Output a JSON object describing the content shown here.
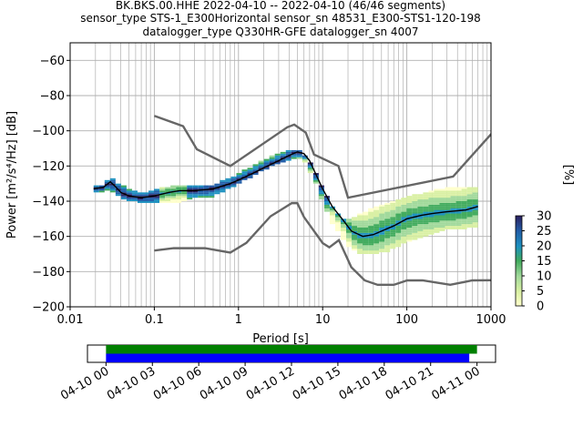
{
  "title_lines": [
    "BK.BKS.00.HHE   2022-04-10 -- 2022-04-10  (46/46 segments)",
    "sensor_type STS-1_E300Horizontal sensor_sn 48531_E300-STS1-120-198",
    "datalogger_type Q330HR-GFE datalogger_sn 4007"
  ],
  "colors": {
    "model_curves": "#666666",
    "mode_line": "#000000",
    "grid": "#b0b0b0",
    "coverage_top": "#008000",
    "coverage_bottom": "#0000ff",
    "cmap": [
      "#ffffcc",
      "#d9f0a3",
      "#a1d99b",
      "#41ab5d",
      "#1d91c0",
      "#225ea8",
      "#2c1f5e"
    ]
  },
  "chart_data": [
    {
      "type": "heatmap",
      "subtype": "probabilistic power spectral density",
      "xlabel": "Period [s]",
      "ylabel": "Power [m²/s⁴/Hz] [dB]",
      "xscale": "log",
      "xlim": [
        0.01,
        1000
      ],
      "ylim": [
        -200,
        -50
      ],
      "xticks": [
        0.01,
        0.1,
        1,
        10,
        100,
        1000
      ],
      "xtick_labels": [
        "0.01",
        "0.1",
        "1",
        "10",
        "100",
        "1000"
      ],
      "yticks": [
        -200,
        -180,
        -160,
        -140,
        -120,
        -100,
        -80,
        -60
      ],
      "ytick_labels": [
        "−200",
        "−180",
        "−160",
        "−140",
        "−120",
        "−100",
        "−80",
        "−60"
      ],
      "grid": true,
      "colorbar": {
        "label": "[%]",
        "range": [
          0,
          30
        ],
        "ticks": [
          0,
          5,
          10,
          15,
          20,
          25,
          30
        ],
        "tick_labels": [
          "0",
          "5",
          "10",
          "15",
          "20",
          "25",
          "30"
        ]
      },
      "ppsd_band": {
        "period": [
          0.019,
          0.025,
          0.03,
          0.04,
          0.06,
          0.08,
          0.1,
          0.15,
          0.2,
          0.3,
          0.5,
          0.8,
          1,
          1.5,
          2,
          3,
          4,
          5,
          6,
          8,
          10,
          13,
          17,
          22,
          30,
          40,
          60,
          80,
          100,
          150,
          200,
          300,
          500,
          700
        ],
        "low": [
          -135,
          -135,
          -133,
          -138,
          -140,
          -141,
          -141,
          -141,
          -140,
          -138,
          -137,
          -132,
          -130,
          -125,
          -122,
          -118,
          -116,
          -115,
          -117,
          -127,
          -140,
          -152,
          -160,
          -167,
          -170,
          -170,
          -168,
          -165,
          -163,
          -160,
          -158,
          -156,
          -155,
          -155
        ],
        "high": [
          -132,
          -131,
          -127,
          -131,
          -135,
          -135,
          -134,
          -132,
          -131,
          -132,
          -131,
          -127,
          -125,
          -120,
          -117,
          -113,
          -111,
          -111,
          -114,
          -122,
          -133,
          -143,
          -150,
          -150,
          -147,
          -144,
          -141,
          -139,
          -138,
          -136,
          -134,
          -133,
          -132,
          -132
        ]
      },
      "mode_line": {
        "period": [
          0.019,
          0.025,
          0.03,
          0.035,
          0.04,
          0.05,
          0.07,
          0.1,
          0.15,
          0.2,
          0.3,
          0.5,
          0.8,
          1,
          1.5,
          2,
          3,
          4,
          5,
          6,
          7,
          8,
          10,
          13,
          17,
          22,
          30,
          40,
          50,
          70,
          100,
          150,
          200,
          300,
          500,
          700
        ],
        "power": [
          -133,
          -132,
          -129,
          -132,
          -135,
          -137,
          -138,
          -137,
          -135,
          -134,
          -134,
          -133,
          -130,
          -128,
          -124,
          -121,
          -117,
          -114,
          -112,
          -113,
          -117,
          -123,
          -133,
          -143,
          -150,
          -157,
          -160,
          -159,
          -157,
          -154,
          -150,
          -148,
          -147,
          -146,
          -145,
          -143
        ]
      },
      "model_high": {
        "period": [
          0.1,
          0.22,
          0.32,
          0.8,
          3.8,
          4.6,
          6.3,
          7.9,
          15.4,
          20,
          354.8,
          10000
        ],
        "power": [
          -91.5,
          -97.4,
          -110.5,
          -120,
          -98,
          -96.5,
          -101,
          -113.5,
          -120,
          -138,
          -126,
          -48.5
        ]
      },
      "model_low": {
        "period": [
          0.1,
          0.17,
          0.4,
          0.8,
          1.24,
          2.4,
          4.3,
          5,
          6,
          10,
          12,
          15.6,
          21.9,
          31.6,
          45,
          70,
          101,
          154,
          328,
          600,
          10000
        ],
        "power": [
          -168,
          -166.7,
          -166.7,
          -169.2,
          -163.7,
          -148.6,
          -141.1,
          -141.1,
          -149,
          -163.8,
          -166.2,
          -162.1,
          -177.5,
          -185,
          -187.5,
          -187.5,
          -185,
          -185,
          -187.5,
          -185,
          -184.4
        ]
      }
    },
    {
      "type": "timeline",
      "tick_labels": [
        "04-10 00",
        "04-10 03",
        "04-10 06",
        "04-10 09",
        "04-10 12",
        "04-10 15",
        "04-10 18",
        "04-10 21",
        "04-11 00"
      ],
      "xlim_hours": [
        -1.2,
        25.2
      ],
      "segments": [
        {
          "start_hours": 0,
          "end_hours": 24.0,
          "color": "#008000"
        },
        {
          "start_hours": 0,
          "end_hours": 23.5,
          "color": "#0000ff"
        }
      ]
    }
  ]
}
